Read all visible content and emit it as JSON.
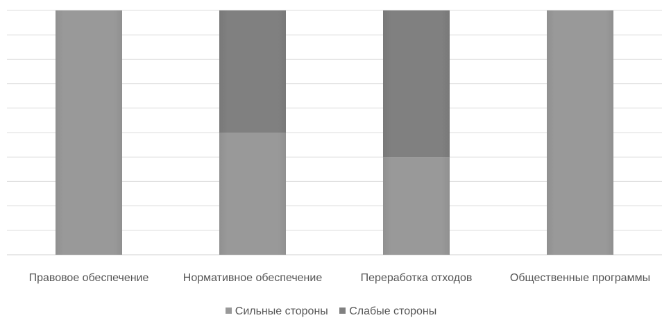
{
  "chart_data": {
    "type": "bar",
    "stacked": true,
    "percent": true,
    "categories": [
      "Правовое обеспечение",
      "Нормативное обеспечение",
      "Переработка отходов",
      "Общественные программы"
    ],
    "series": [
      {
        "name": "Сильные стороны",
        "values": [
          1,
          5,
          4,
          1
        ],
        "color": "#999999"
      },
      {
        "name": "Слабые стороны",
        "values": [
          0,
          5,
          6,
          0
        ],
        "color": "#808080"
      }
    ],
    "ylim": [
      0,
      100
    ],
    "grid": true,
    "legend_position": "bottom",
    "xlabel": "",
    "ylabel": ""
  }
}
